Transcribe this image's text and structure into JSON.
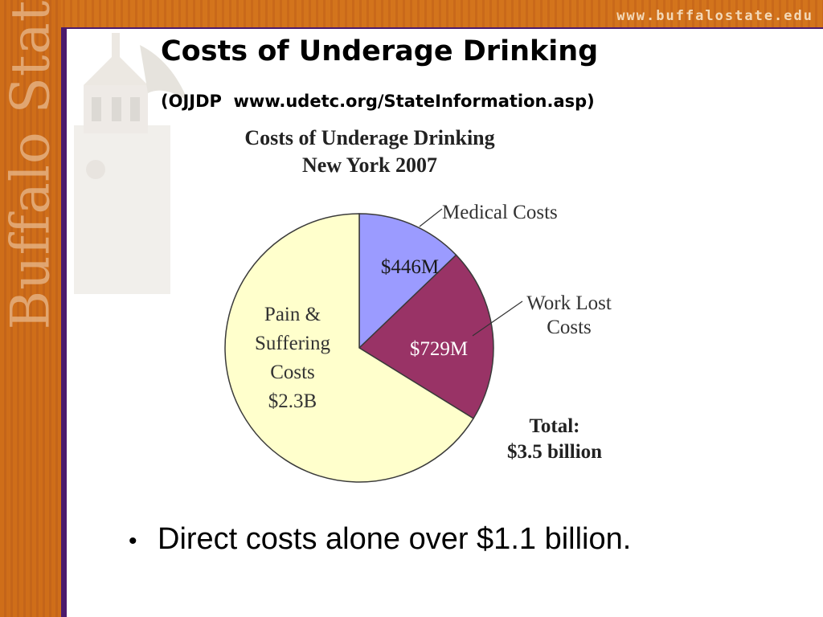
{
  "header": {
    "site_url": "www.buffalostate.edu",
    "brand": "Buffalo State"
  },
  "slide": {
    "title": "Costs of Underage Drinking",
    "subtitle": "(OJJDP  www.udetc.org/StateInformation.asp)"
  },
  "chart_data": {
    "type": "pie",
    "title_lines": [
      "Costs of Underage Drinking",
      "New York 2007"
    ],
    "slices": [
      {
        "label": "Medical Costs",
        "value": 446,
        "value_label": "$446M",
        "color": "#9b9bff"
      },
      {
        "label": "Work Lost Costs",
        "value": 729,
        "value_label": "$729M",
        "color": "#993366"
      },
      {
        "label": "Pain & Suffering Costs",
        "value": 2300,
        "value_label": "$2.3B",
        "color": "#ffffcc"
      }
    ],
    "external_labels": {
      "medical": "Medical Costs",
      "work_lost_line1": "Work Lost",
      "work_lost_line2": "Costs"
    },
    "inner_labels": {
      "pain_lines": [
        "Pain &",
        "Suffering",
        "Costs",
        "$2.3B"
      ]
    },
    "total_lines": [
      "Total:",
      "$3.5 billion"
    ]
  },
  "bullets": [
    {
      "text": "Direct costs alone over $1.1 billion."
    }
  ],
  "colors": {
    "orange": "#cf6e19",
    "purple": "#4b1b6d"
  }
}
